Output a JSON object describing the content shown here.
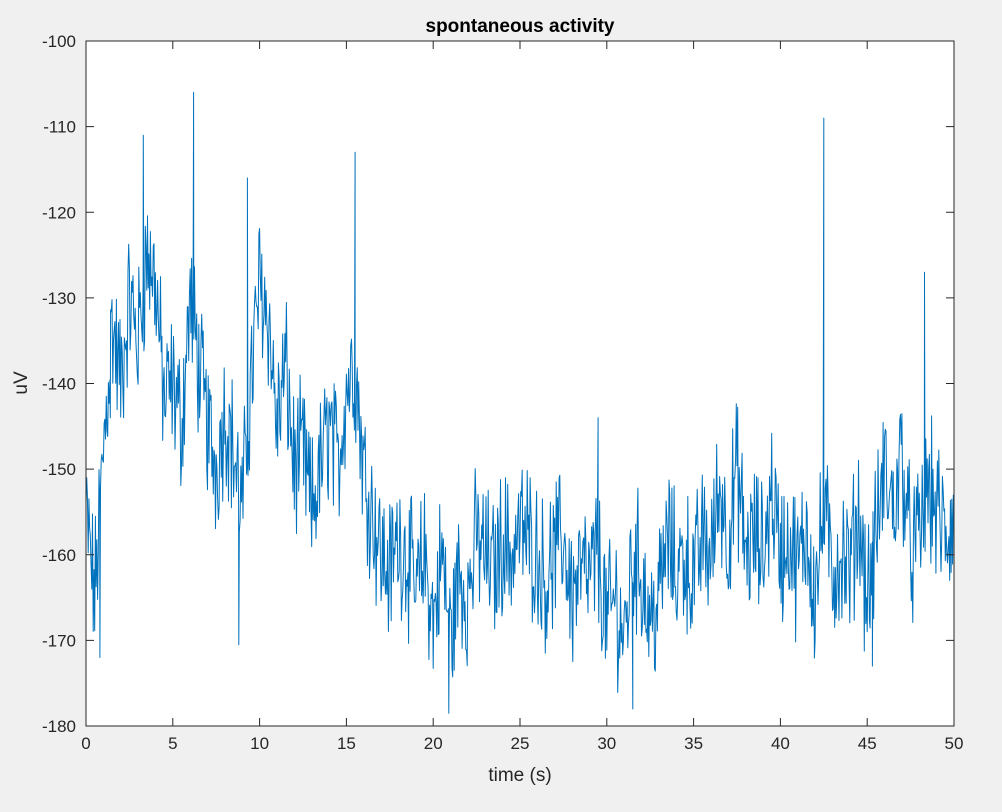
{
  "chart_data": {
    "type": "line",
    "title": "spontaneous activity",
    "xlabel": "time (s)",
    "ylabel": "uV",
    "xlim": [
      0,
      50
    ],
    "ylim": [
      -180,
      -100
    ],
    "xticks": [
      0,
      5,
      10,
      15,
      20,
      25,
      30,
      35,
      40,
      45,
      50
    ],
    "yticks": [
      -100,
      -110,
      -120,
      -130,
      -140,
      -150,
      -160,
      -170,
      -180
    ],
    "grid": false,
    "series": [
      {
        "color": "#0072bd",
        "x": [
          0,
          0.5,
          1,
          1.5,
          2,
          2.5,
          3,
          3.5,
          4,
          4.5,
          5,
          5.5,
          6,
          6.5,
          7,
          7.5,
          8,
          8.5,
          9,
          9.5,
          10,
          10.5,
          11,
          11.5,
          12,
          12.5,
          13,
          13.5,
          14,
          14.5,
          15,
          15.5,
          16,
          16.5,
          17,
          17.5,
          18,
          18.5,
          19,
          19.5,
          20,
          20.5,
          21,
          21.5,
          22,
          22.5,
          23,
          23.5,
          24,
          24.5,
          25,
          25.5,
          26,
          26.5,
          27,
          27.5,
          28,
          28.5,
          29,
          29.5,
          30,
          30.5,
          31,
          31.5,
          32,
          32.5,
          33,
          33.5,
          34,
          34.5,
          35,
          35.5,
          36,
          36.5,
          37,
          37.5,
          38,
          38.5,
          39,
          39.5,
          40,
          40.5,
          41,
          41.5,
          42,
          42.5,
          43,
          43.5,
          44,
          44.5,
          45,
          45.5,
          46,
          46.5,
          47,
          47.5,
          48,
          48.5,
          49,
          49.5,
          50
        ],
        "y": [
          -155,
          -165,
          -148,
          -133,
          -140,
          -130,
          -135,
          -125,
          -128,
          -142,
          -140,
          -145,
          -130,
          -138,
          -145,
          -150,
          -143,
          -148,
          -155,
          -140,
          -128,
          -132,
          -145,
          -138,
          -150,
          -148,
          -155,
          -150,
          -145,
          -150,
          -140,
          -138,
          -150,
          -155,
          -160,
          -162,
          -158,
          -160,
          -165,
          -160,
          -168,
          -160,
          -170,
          -162,
          -165,
          -158,
          -160,
          -162,
          -158,
          -160,
          -157,
          -158,
          -160,
          -163,
          -160,
          -158,
          -165,
          -162,
          -163,
          -160,
          -168,
          -165,
          -170,
          -160,
          -162,
          -168,
          -165,
          -158,
          -162,
          -160,
          -163,
          -158,
          -160,
          -152,
          -158,
          -150,
          -160,
          -158,
          -160,
          -152,
          -160,
          -158,
          -162,
          -157,
          -165,
          -155,
          -162,
          -160,
          -162,
          -155,
          -165,
          -158,
          -150,
          -155,
          -148,
          -160,
          -158,
          -152,
          -155,
          -158,
          -156
        ],
        "spikes": [
          {
            "x": 0.8,
            "y": -172
          },
          {
            "x": 1.4,
            "y": -144
          },
          {
            "x": 3.3,
            "y": -111
          },
          {
            "x": 6.2,
            "y": -106
          },
          {
            "x": 8.8,
            "y": -170.5
          },
          {
            "x": 9.3,
            "y": -116
          },
          {
            "x": 15.5,
            "y": -113
          },
          {
            "x": 20.9,
            "y": -178.5
          },
          {
            "x": 29.5,
            "y": -144
          },
          {
            "x": 31.5,
            "y": -178
          },
          {
            "x": 42.5,
            "y": -109
          },
          {
            "x": 48.3,
            "y": -127
          },
          {
            "x": 45.3,
            "y": -173
          }
        ]
      }
    ]
  }
}
